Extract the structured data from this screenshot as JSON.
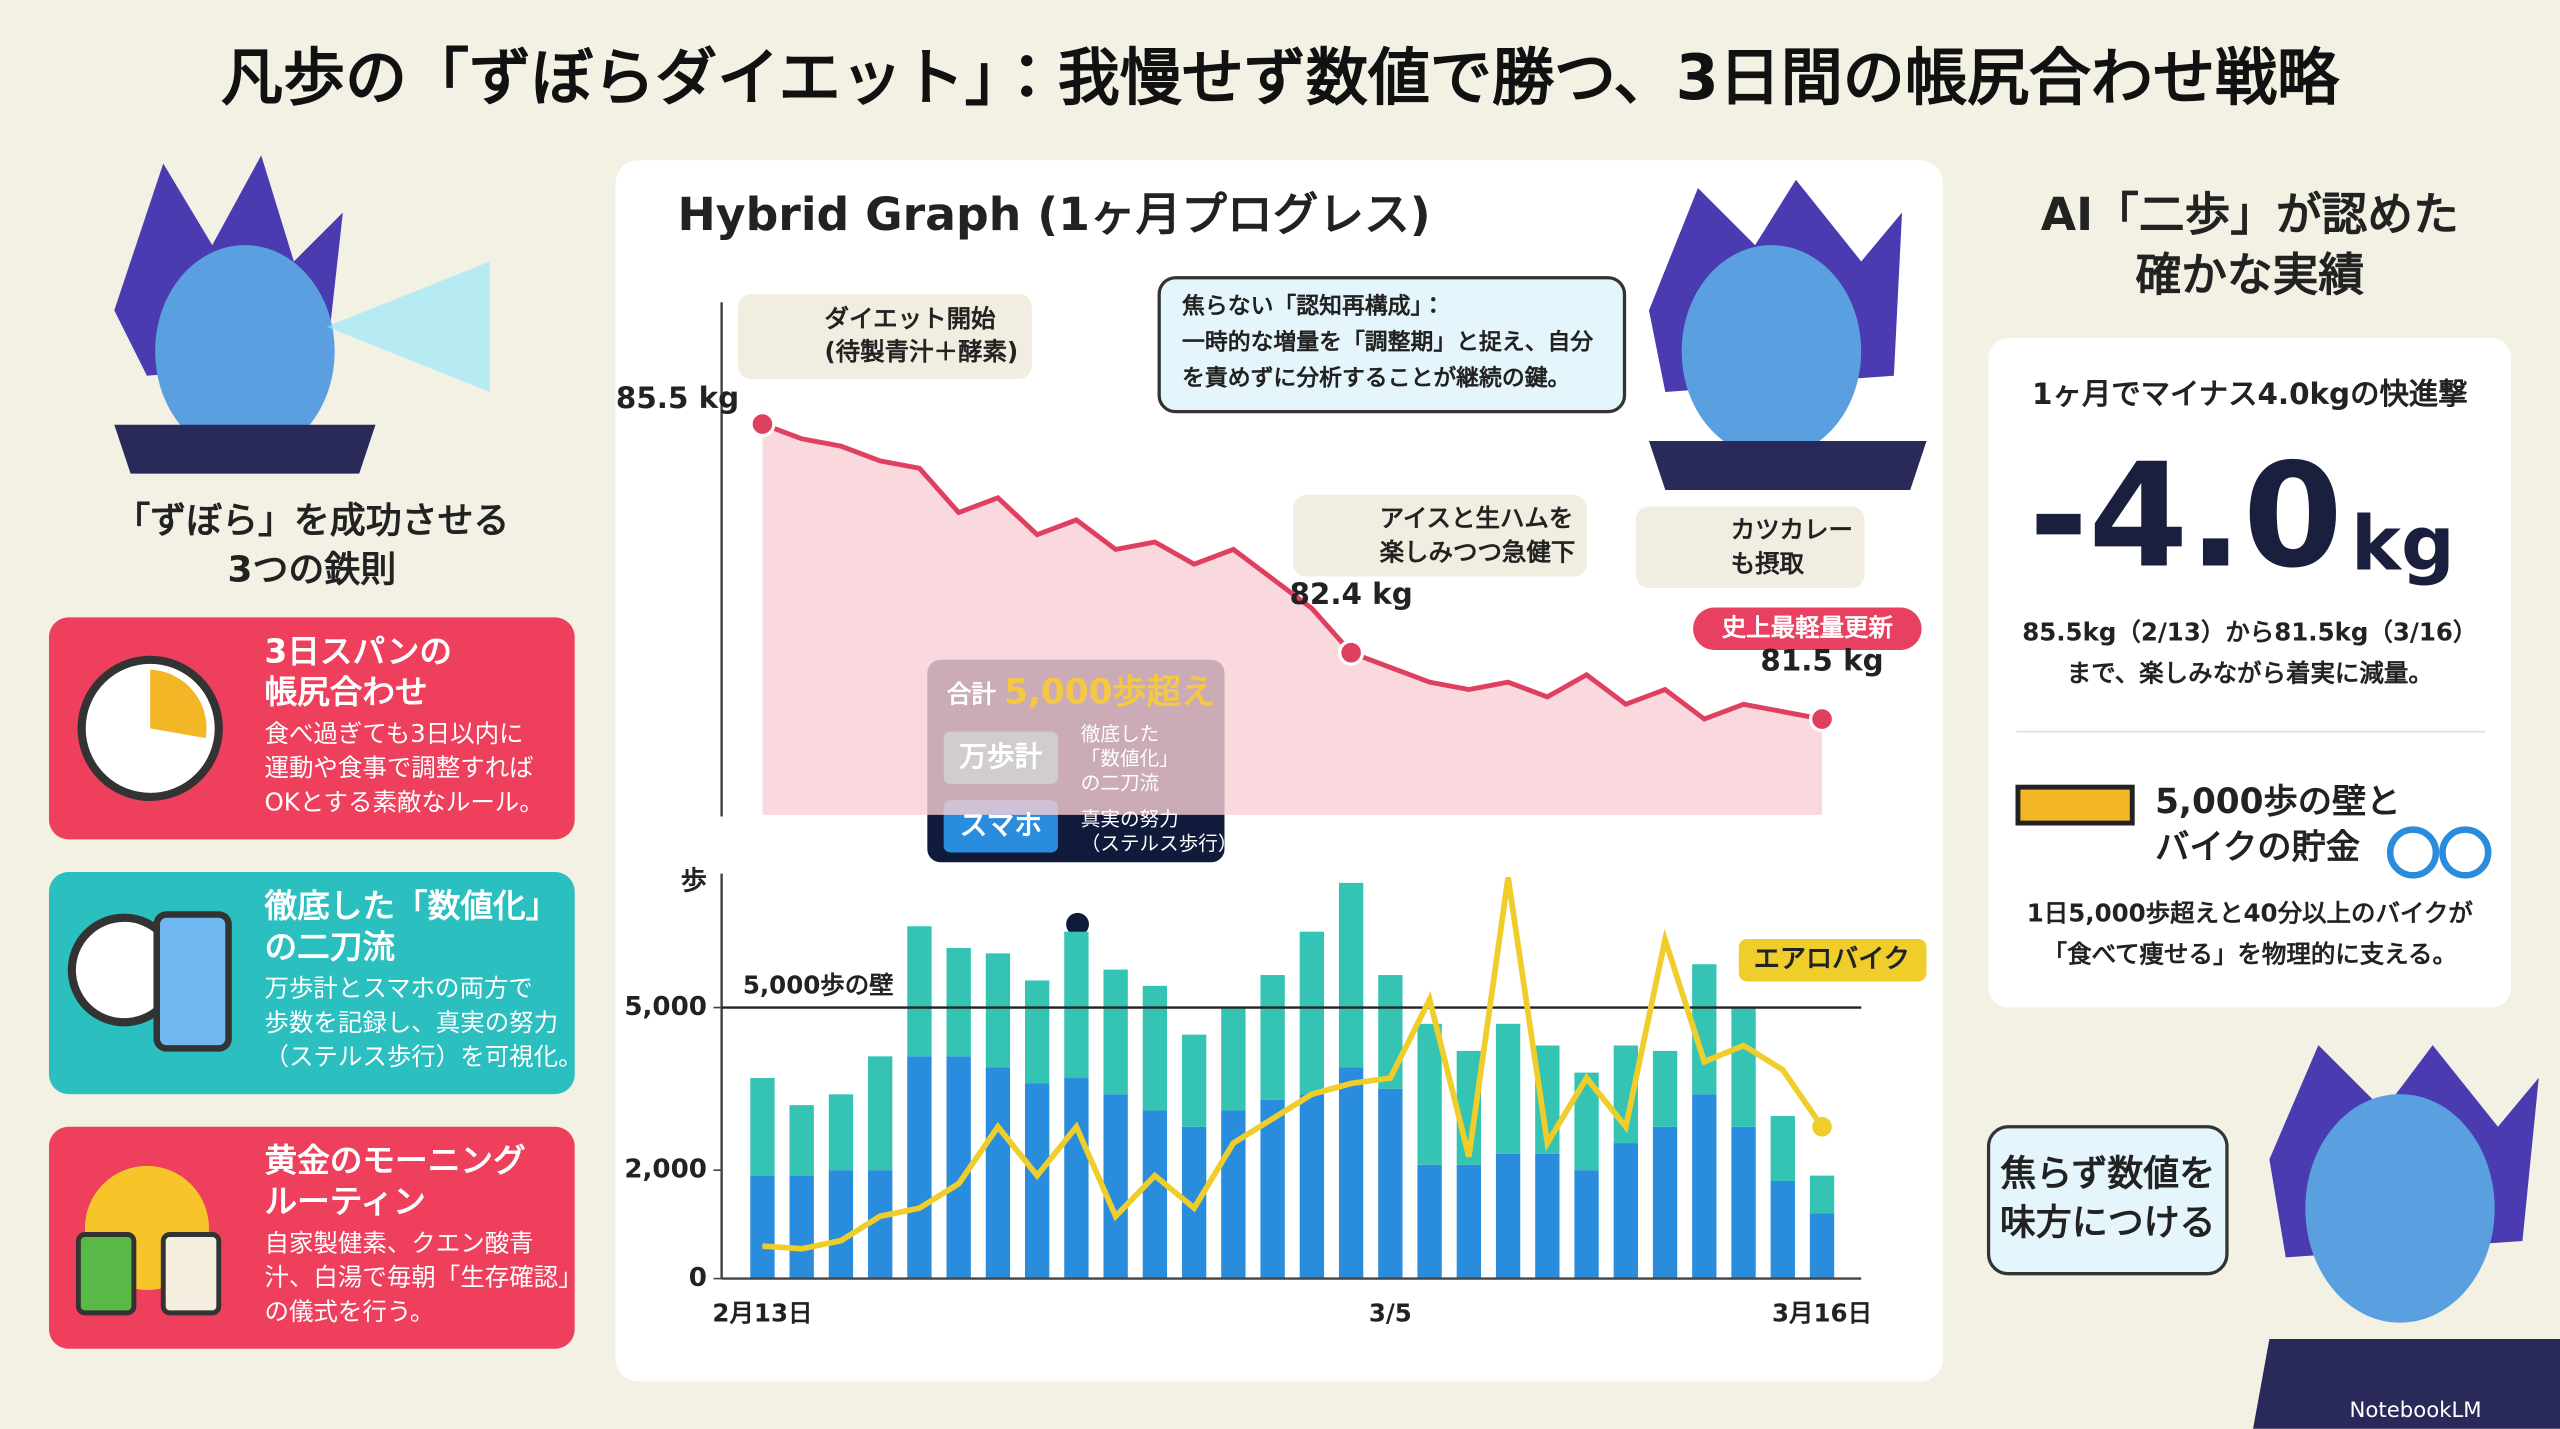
{
  "title": "凡歩の「ずぼらダイエット」：我慢せず数値で勝つ、3日間の帳尻合わせ戦略",
  "left": {
    "heading": [
      "「ずぼら」を成功させる",
      "3つの鉄則"
    ],
    "cards": [
      {
        "title": [
          "3日スパンの",
          "帳尻合わせ"
        ],
        "body": [
          "食べ過ぎても3日以内に",
          "運動や食事で調整すれば",
          "OKとする素敵なルール。"
        ]
      },
      {
        "title": [
          "徹底した「数値化」",
          "の二刀流"
        ],
        "body": [
          "万歩計とスマホの両方で",
          "歩数を記録し、真実の努力",
          "（ステルス歩行）を可視化。"
        ]
      },
      {
        "title": [
          "黄金のモーニング",
          "ルーティン"
        ],
        "body": [
          "自家製健素、クエン酸青",
          "汁、白湯で毎朝「生存確認」",
          "の儀式を行う。"
        ]
      }
    ]
  },
  "chart_data": {
    "type": "hybrid",
    "title": "Hybrid Graph (1ヶ月プログレス)",
    "categories": [
      "2月13日",
      null,
      null,
      null,
      null,
      null,
      null,
      null,
      null,
      null,
      null,
      null,
      null,
      null,
      null,
      null,
      "3/5",
      null,
      null,
      null,
      null,
      null,
      null,
      null,
      null,
      null,
      null,
      "3月16日"
    ],
    "weight": {
      "color": "#e0405f",
      "ylim": [
        80.2,
        86
      ],
      "values": [
        85.5,
        85.3,
        85.2,
        85.0,
        84.9,
        84.3,
        84.5,
        84.0,
        84.2,
        83.8,
        83.9,
        83.6,
        83.8,
        83.4,
        83.0,
        82.4,
        82.2,
        82.0,
        81.9,
        82.0,
        81.8,
        82.1,
        81.7,
        81.9,
        81.5,
        81.7,
        81.6,
        81.5
      ],
      "value_labels": [
        "85.5 kg",
        null,
        null,
        null,
        null,
        null,
        null,
        null,
        null,
        null,
        null,
        null,
        null,
        null,
        null,
        "82.4 kg",
        null,
        null,
        null,
        null,
        null,
        null,
        null,
        null,
        null,
        null,
        null,
        "81.5 kg"
      ]
    },
    "ylabel": "歩",
    "ylim": [
      0,
      7500
    ],
    "yticks": [
      0,
      {
        "value": 2000,
        "label": "2,000"
      },
      {
        "value": 5000,
        "label": "5,000"
      }
    ],
    "threshold": {
      "value": 5000,
      "label": "5,000歩の壁"
    },
    "series": [
      {
        "name": "万歩計",
        "color": "#35c4b4",
        "values": [
          1800,
          1300,
          1400,
          2100,
          2400,
          2000,
          2100,
          1900,
          2700,
          2300,
          2300,
          1700,
          1900,
          2300,
          3000,
          3400,
          2100,
          2600,
          2100,
          2400,
          2000,
          1800,
          1800,
          1400,
          2400,
          2200,
          1200,
          700
        ]
      },
      {
        "name": "スマホ",
        "color": "#2a8cdc",
        "values": [
          1900,
          1900,
          2000,
          2000,
          4100,
          4100,
          3900,
          3600,
          3700,
          3400,
          3100,
          2800,
          3100,
          3300,
          3400,
          3900,
          3500,
          2100,
          2100,
          2300,
          2300,
          2000,
          2500,
          2800,
          3400,
          2800,
          1800,
          1200
        ]
      },
      {
        "name": "エアロバイク",
        "color": "#efcd2a",
        "values": [
          600,
          550,
          700,
          1150,
          1300,
          1750,
          2800,
          1900,
          2800,
          1150,
          1900,
          1300,
          2500,
          2950,
          3400,
          3600,
          3700,
          5150,
          2250,
          7400,
          2500,
          3700,
          2800,
          6250,
          4000,
          4300,
          3850,
          2800
        ]
      }
    ],
    "annotations": {
      "start": [
        "ダイエット開始",
        "(待製青汁＋酵素)"
      ],
      "reframe": [
        "焦らない「認知再構成」：",
        "一時的な増量を「調整期」と捉え、自分",
        "を責めずに分析することが継続の鍵。"
      ],
      "ice": [
        "アイスと生ハムを",
        "楽しみつつ急健下"
      ],
      "katsu": [
        "カツカレー",
        "も摂取"
      ],
      "record": "史上最軽量更新",
      "total": {
        "prefix": "合計",
        "label": "5,000歩超え"
      },
      "twin": [
        "徹底した",
        "「数値化」",
        "の二刀流"
      ],
      "stealth": [
        "真実の努力",
        "（ステルス歩行）"
      ]
    }
  },
  "right": {
    "heading": [
      "AI「二歩」が認めた",
      "確かな実績"
    ],
    "subtitle": "1ヶ月でマイナス4.0kgの快進撃",
    "big": "-4.0",
    "unit": "kg",
    "detail": [
      "85.5kg（2/13）から81.5kg（3/16）",
      "まで、楽しみながら着実に減量。"
    ],
    "section_title": [
      "5,000歩の壁と",
      "バイクの貯金"
    ],
    "section_body": [
      "1日5,000歩超えと40分以上のバイクが",
      "「食べて痩せる」を物理的に支える。"
    ]
  },
  "bubble": [
    "焦らず数値を",
    "味方につける"
  ],
  "watermark": "NotebookLM"
}
